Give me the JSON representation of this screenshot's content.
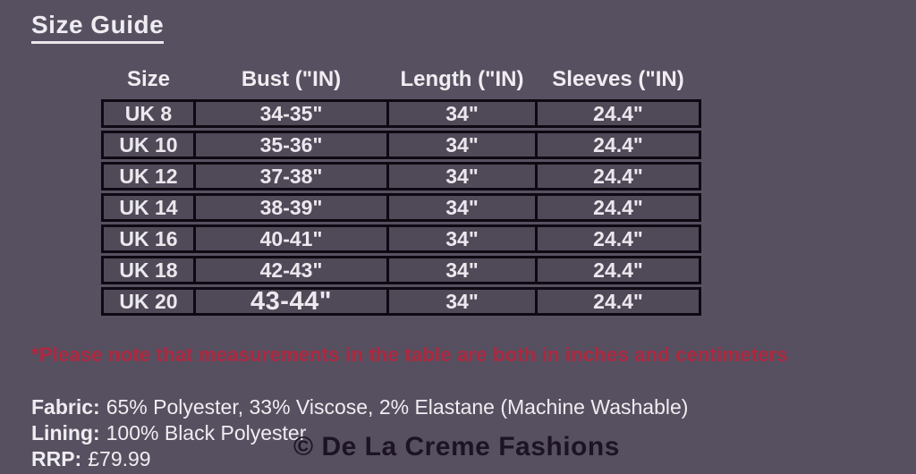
{
  "page": {
    "title": "Size Guide",
    "background_color": "#575060",
    "text_color": "#ebe8ee",
    "note_color": "#ad2840",
    "watermark_color": "#1c1424",
    "table_border_color": "#0d0913"
  },
  "table": {
    "headers": [
      "Size",
      "Bust (\"IN)",
      "Length (\"IN)",
      "Sleeves (\"IN)"
    ],
    "rows": [
      [
        "UK 8",
        "34-35\"",
        "34\"",
        "24.4\""
      ],
      [
        "UK 10",
        "35-36\"",
        "34\"",
        "24.4\""
      ],
      [
        "UK 12",
        "37-38\"",
        "34\"",
        "24.4\""
      ],
      [
        "UK 14",
        "38-39\"",
        "34\"",
        "24.4\""
      ],
      [
        "UK 16",
        "40-41\"",
        "34\"",
        "24.4\""
      ],
      [
        "UK 18",
        "42-43\"",
        "34\"",
        "24.4\""
      ],
      [
        "UK 20",
        "43-44\"",
        "34\"",
        "24.4\""
      ]
    ]
  },
  "note": "*Please note that measurements in the table are both in inches and centimeters",
  "details": {
    "fabric_label": "Fabric:",
    "fabric_value": "65% Polyester, 33% Viscose, 2% Elastane (Machine Washable)",
    "lining_label": "Lining:",
    "lining_value": "100% Black Polyester",
    "rrp_label": "RRP:",
    "rrp_value": "£79.99"
  },
  "watermark": "© De La Creme Fashions"
}
